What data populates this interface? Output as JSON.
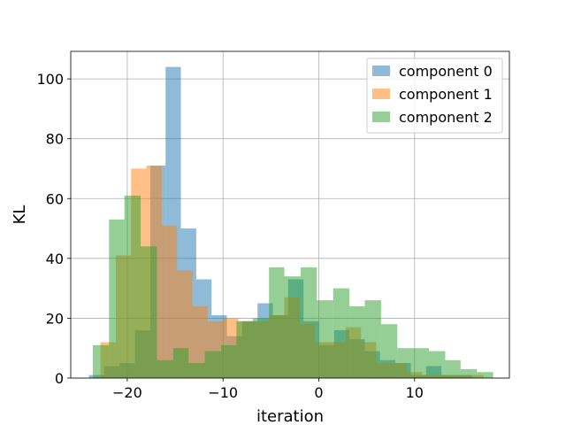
{
  "chart_data": {
    "type": "bar",
    "subtype": "overlapping-histogram",
    "title": "",
    "xlabel": "iteration",
    "ylabel": "KL",
    "xlim": [
      -25.9,
      19.9
    ],
    "ylim": [
      0,
      109.2
    ],
    "xticks": [
      -20,
      -10,
      0,
      10
    ],
    "xtick_labels": [
      "−20",
      "−10",
      "0",
      "10"
    ],
    "yticks": [
      0,
      20,
      40,
      60,
      80,
      100
    ],
    "ytick_labels": [
      "0",
      "20",
      "40",
      "60",
      "80",
      "100"
    ],
    "grid": true,
    "legend_position": "top-right",
    "bar_alpha": 0.5,
    "series": [
      {
        "name": "component 0",
        "color": "#1f77b4",
        "bins": [
          [
            -24.0,
            -22.4,
            1
          ],
          [
            -22.4,
            -20.8,
            4
          ],
          [
            -20.8,
            -19.2,
            5
          ],
          [
            -19.2,
            -17.6,
            16
          ],
          [
            -17.6,
            -16.0,
            71
          ],
          [
            -16.0,
            -14.4,
            104
          ],
          [
            -14.4,
            -12.8,
            50
          ],
          [
            -12.8,
            -11.2,
            33
          ],
          [
            -11.2,
            -9.6,
            21
          ],
          [
            -9.6,
            -8.0,
            14
          ],
          [
            -8.0,
            -6.4,
            19
          ],
          [
            -6.4,
            -4.8,
            25
          ],
          [
            -4.8,
            -3.2,
            21
          ],
          [
            -3.2,
            -1.6,
            33
          ],
          [
            -1.6,
            0.0,
            19
          ],
          [
            0.0,
            1.6,
            11
          ],
          [
            1.6,
            3.2,
            16
          ],
          [
            3.2,
            4.8,
            13
          ],
          [
            4.8,
            6.4,
            9
          ],
          [
            6.4,
            8.0,
            6
          ],
          [
            8.0,
            9.6,
            5
          ],
          [
            9.6,
            11.2,
            1
          ],
          [
            11.2,
            12.8,
            4
          ],
          [
            12.8,
            14.4,
            1
          ],
          [
            14.4,
            16.0,
            1
          ]
        ]
      },
      {
        "name": "component 1",
        "color": "#ff7f0e",
        "bins": [
          [
            -22.8,
            -21.2,
            12
          ],
          [
            -21.2,
            -19.6,
            41
          ],
          [
            -19.6,
            -18.0,
            70
          ],
          [
            -18.0,
            -16.4,
            71
          ],
          [
            -16.4,
            -14.8,
            51
          ],
          [
            -14.8,
            -13.2,
            36
          ],
          [
            -13.2,
            -11.6,
            24
          ],
          [
            -11.6,
            -10.0,
            19
          ],
          [
            -10.0,
            -8.4,
            20
          ],
          [
            -8.4,
            -6.8,
            19
          ],
          [
            -6.8,
            -5.2,
            19
          ],
          [
            -5.2,
            -3.6,
            21
          ],
          [
            -3.6,
            -2.0,
            27
          ],
          [
            -2.0,
            -0.4,
            18
          ],
          [
            -0.4,
            1.2,
            12
          ],
          [
            1.2,
            2.8,
            12
          ],
          [
            2.8,
            4.4,
            17
          ],
          [
            4.4,
            6.0,
            12
          ],
          [
            6.0,
            7.6,
            5
          ],
          [
            7.6,
            9.2,
            5
          ],
          [
            9.2,
            10.8,
            2
          ],
          [
            10.8,
            12.4,
            1
          ],
          [
            12.4,
            14.0,
            1
          ],
          [
            14.0,
            15.6,
            1
          ],
          [
            15.6,
            17.2,
            1
          ]
        ]
      },
      {
        "name": "component 2",
        "color": "#2ca02c",
        "bins": [
          [
            -23.6,
            -21.9,
            11
          ],
          [
            -21.9,
            -20.3,
            53
          ],
          [
            -20.3,
            -18.6,
            61
          ],
          [
            -18.6,
            -16.9,
            44
          ],
          [
            -16.9,
            -15.2,
            6
          ],
          [
            -15.2,
            -13.6,
            10
          ],
          [
            -13.6,
            -11.9,
            5
          ],
          [
            -11.9,
            -10.2,
            9
          ],
          [
            -10.2,
            -8.6,
            11
          ],
          [
            -8.6,
            -6.9,
            19
          ],
          [
            -6.9,
            -5.2,
            20
          ],
          [
            -5.2,
            -3.6,
            37
          ],
          [
            -3.6,
            -1.9,
            34
          ],
          [
            -1.9,
            -0.2,
            37
          ],
          [
            -0.2,
            1.5,
            26
          ],
          [
            1.5,
            3.2,
            30
          ],
          [
            3.2,
            4.8,
            24
          ],
          [
            4.8,
            6.5,
            26
          ],
          [
            6.5,
            8.2,
            18
          ],
          [
            8.2,
            9.8,
            10
          ],
          [
            9.8,
            11.5,
            10
          ],
          [
            11.5,
            13.2,
            9
          ],
          [
            13.2,
            14.8,
            6
          ],
          [
            14.8,
            16.5,
            3
          ],
          [
            16.5,
            18.2,
            2
          ]
        ]
      }
    ]
  }
}
